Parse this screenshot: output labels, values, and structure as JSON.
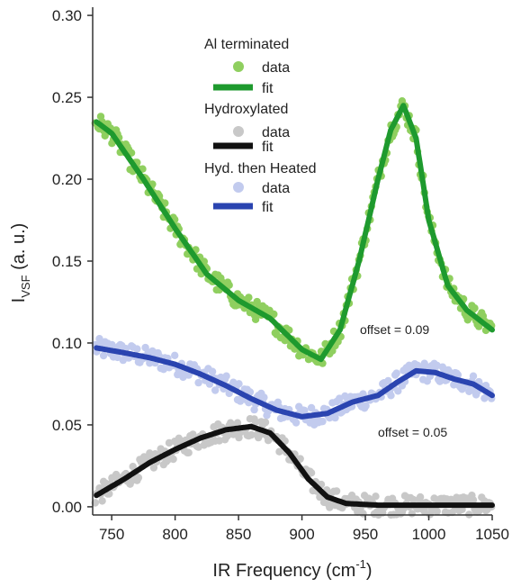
{
  "chart_data": {
    "type": "scatter",
    "xlabel": "IR Frequency (cm",
    "xlabel_sup": "-1",
    "xlabel_close": ")",
    "ylabel": "I",
    "ylabel_sub": "VSF",
    "ylabel_rest": " (a. u.)",
    "xlim": [
      735,
      1050
    ],
    "ylim": [
      -0.005,
      0.305
    ],
    "xticks": [
      750,
      800,
      850,
      900,
      950,
      1000,
      1050
    ],
    "yticks": [
      0.0,
      0.05,
      0.1,
      0.15,
      0.2,
      0.25,
      0.3
    ],
    "ytick_labels": [
      "0.00",
      "0.05",
      "0.10",
      "0.15",
      "0.20",
      "0.25",
      "0.30"
    ],
    "grid": false,
    "legend_position": "top-center",
    "groups": [
      {
        "name": "Al terminated",
        "data_label": "data",
        "fit_label": "fit",
        "data_color": "#8fcf5f",
        "fit_color": "#1e9a2e",
        "offset_annotation": "offset = 0.09",
        "fit": {
          "x": [
            738,
            750,
            775,
            800,
            825,
            850,
            875,
            900,
            915,
            930,
            945,
            960,
            970,
            980,
            990,
            1000,
            1015,
            1030,
            1050
          ],
          "y": [
            0.235,
            0.228,
            0.2,
            0.17,
            0.142,
            0.126,
            0.115,
            0.096,
            0.09,
            0.108,
            0.15,
            0.2,
            0.23,
            0.245,
            0.225,
            0.175,
            0.135,
            0.12,
            0.108
          ]
        }
      },
      {
        "name": "Hydroxylated",
        "data_label": "data",
        "fit_label": "fit",
        "data_color": "#c8c8c8",
        "fit_color": "#111111",
        "offset_annotation": "",
        "fit": {
          "x": [
            738,
            760,
            780,
            800,
            820,
            840,
            860,
            875,
            890,
            905,
            920,
            935,
            960,
            1000,
            1050
          ],
          "y": [
            0.007,
            0.017,
            0.027,
            0.035,
            0.042,
            0.047,
            0.049,
            0.045,
            0.033,
            0.017,
            0.006,
            0.002,
            0.001,
            0.001,
            0.001
          ]
        }
      },
      {
        "name": "Hyd. then Heated",
        "data_label": "data",
        "fit_label": "fit",
        "data_color": "#c2cbee",
        "fit_color": "#2a44b0",
        "offset_annotation": "offset = 0.05",
        "fit": {
          "x": [
            738,
            760,
            780,
            800,
            820,
            840,
            860,
            880,
            900,
            920,
            940,
            960,
            975,
            990,
            1005,
            1020,
            1035,
            1050
          ],
          "y": [
            0.097,
            0.094,
            0.091,
            0.087,
            0.081,
            0.074,
            0.066,
            0.059,
            0.055,
            0.057,
            0.064,
            0.068,
            0.076,
            0.083,
            0.082,
            0.078,
            0.075,
            0.068
          ]
        }
      }
    ]
  }
}
